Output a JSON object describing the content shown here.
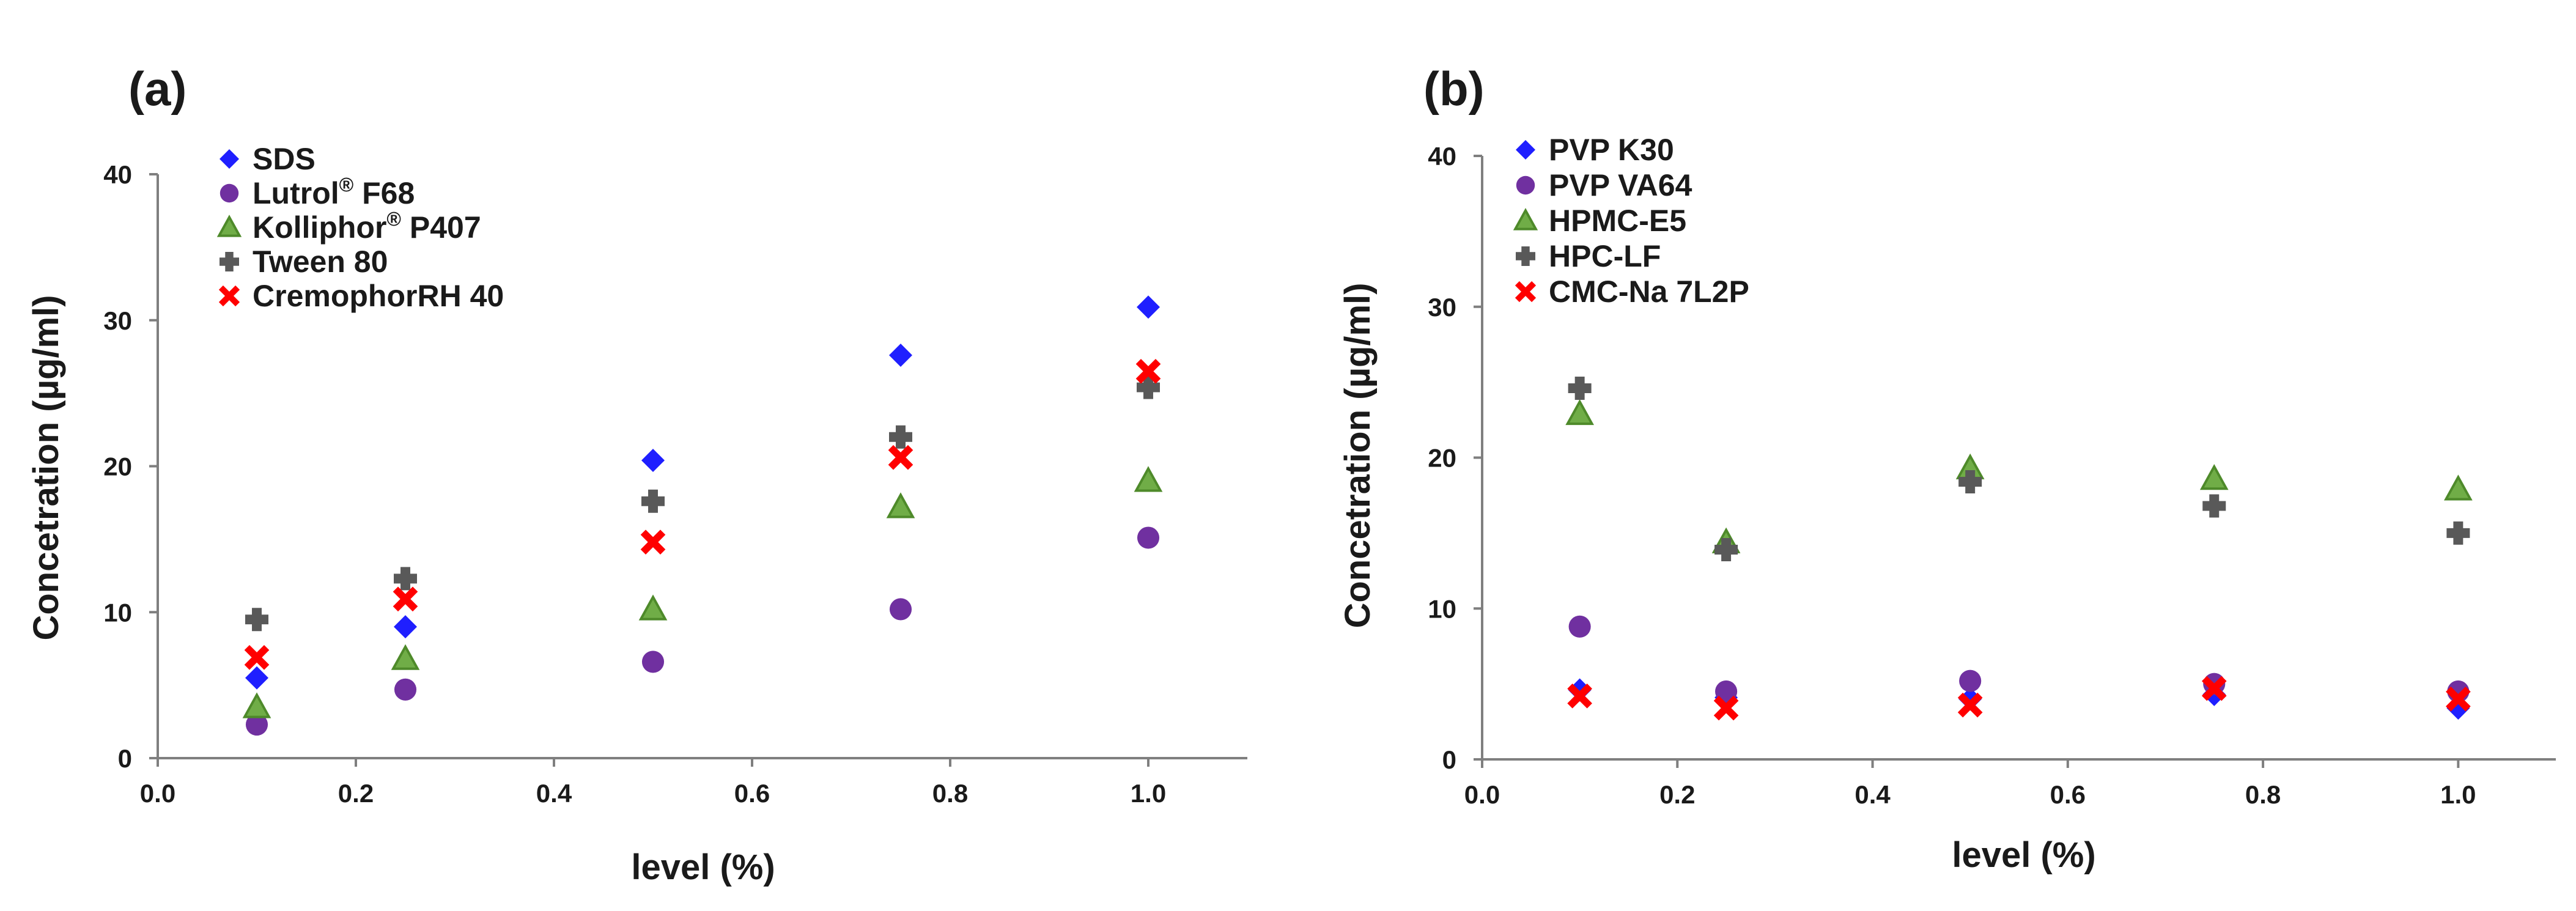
{
  "chart_data": [
    {
      "type": "scatter",
      "panel_label": "(a)",
      "xlabel": "level (%)",
      "ylabel": "Concetration (µg/ml)",
      "xlim": [
        0,
        1.1
      ],
      "ylim": [
        0,
        40
      ],
      "xticks": [
        "0.0",
        "0.2",
        "0.4",
        "0.6",
        "0.8",
        "1.0"
      ],
      "yticks": [
        "0",
        "10",
        "20",
        "30",
        "40"
      ],
      "legend_position": "top-left",
      "x": [
        0.1,
        0.25,
        0.5,
        0.75,
        1.0
      ],
      "series": [
        {
          "name": "SDS",
          "marker": "diamond",
          "color": "#1f1fff",
          "values": [
            5.5,
            9.0,
            20.4,
            27.6,
            30.9
          ]
        },
        {
          "name": "Lutrol® F68",
          "name_base": "Lutrol",
          "name_sup": "®",
          "name_rest": " F68",
          "marker": "circle",
          "color": "#7030a0",
          "values": [
            2.3,
            4.7,
            6.6,
            10.2,
            15.1
          ]
        },
        {
          "name": "Kolliphor® P407",
          "name_base": "Kolliphor",
          "name_sup": "®",
          "name_rest": " P407",
          "marker": "triangle",
          "color": "#70ad47",
          "edge": "#4e8a2a",
          "values": [
            3.5,
            6.8,
            10.2,
            17.2,
            19.0
          ]
        },
        {
          "name": "Tween 80",
          "marker": "plus",
          "color": "#595959",
          "values": [
            9.5,
            12.3,
            17.6,
            22.0,
            25.4
          ]
        },
        {
          "name": "CremophorRH 40",
          "marker": "cross",
          "color": "#ff0000",
          "values": [
            6.9,
            10.9,
            14.8,
            20.6,
            26.5
          ]
        }
      ]
    },
    {
      "type": "scatter",
      "panel_label": "(b)",
      "xlabel": "level (%)",
      "ylabel": "Concetration (µg/ml)",
      "xlim": [
        0,
        1.1
      ],
      "ylim": [
        0,
        40
      ],
      "xticks": [
        "0.0",
        "0.2",
        "0.4",
        "0.6",
        "0.8",
        "1.0"
      ],
      "yticks": [
        "0",
        "10",
        "20",
        "30",
        "40"
      ],
      "legend_position": "top-left",
      "x": [
        0.1,
        0.25,
        0.5,
        0.75,
        1.0
      ],
      "series": [
        {
          "name": "PVP K30",
          "marker": "diamond",
          "color": "#1f1fff",
          "values": [
            4.6,
            4.1,
            4.0,
            4.3,
            3.4
          ]
        },
        {
          "name": "PVP VA64",
          "marker": "circle",
          "color": "#7030a0",
          "values": [
            8.8,
            4.5,
            5.2,
            5.0,
            4.5
          ]
        },
        {
          "name": "HPMC-E5",
          "marker": "triangle",
          "color": "#70ad47",
          "edge": "#4e8a2a",
          "values": [
            22.9,
            14.4,
            19.3,
            18.6,
            17.9
          ]
        },
        {
          "name": "HPC-LF",
          "marker": "plus",
          "color": "#595959",
          "values": [
            24.6,
            13.9,
            18.4,
            16.8,
            15.0
          ]
        },
        {
          "name": "CMC-Na 7L2P",
          "marker": "cross",
          "color": "#ff0000",
          "values": [
            4.2,
            3.4,
            3.6,
            4.7,
            4.0
          ]
        }
      ]
    }
  ]
}
